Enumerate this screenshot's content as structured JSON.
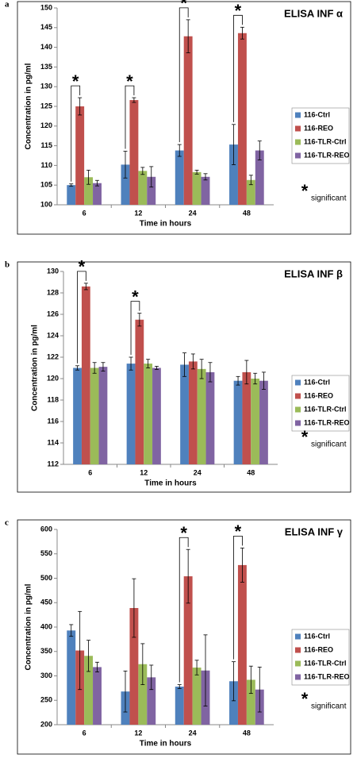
{
  "chart_data": [
    {
      "type": "bar",
      "panel_label": "a",
      "title": "ELISA INF α",
      "x_label": "Time in hours",
      "y_label": "Concentration in pg/ml",
      "categories": [
        "6",
        "12",
        "24",
        "48"
      ],
      "series": [
        {
          "name": "116-Ctrl",
          "color": "#4f81bd",
          "values": [
            105,
            110.2,
            113.8,
            115.3
          ],
          "errors": [
            0.3,
            3.4,
            1.5,
            5.1
          ]
        },
        {
          "name": "116-REO",
          "color": "#c0504d",
          "values": [
            125,
            126.6,
            142.8,
            143.6
          ],
          "errors": [
            2.2,
            0.6,
            4.2,
            1.5
          ]
        },
        {
          "name": "116-TLR-Ctrl",
          "color": "#9bbb59",
          "values": [
            107,
            108.6,
            108.3,
            106.3
          ],
          "errors": [
            1.8,
            0.9,
            0.5,
            1.2
          ]
        },
        {
          "name": "116-TLR-REO",
          "color": "#8064a2",
          "values": [
            105.5,
            107.1,
            107.1,
            113.8
          ],
          "errors": [
            0.7,
            2.6,
            0.8,
            2.4
          ]
        }
      ],
      "ylim": [
        100,
        150
      ],
      "yticks": [
        100,
        105,
        110,
        115,
        120,
        125,
        130,
        135,
        140,
        145,
        150
      ],
      "significance_marker": "*",
      "significance_label": "significant",
      "significant_categories": [
        0,
        1,
        2,
        3
      ]
    },
    {
      "type": "bar",
      "panel_label": "b",
      "title": "ELISA INF β",
      "x_label": "Time in hours",
      "y_label": "Concentration in pg/ml",
      "categories": [
        "6",
        "12",
        "24",
        "48"
      ],
      "series": [
        {
          "name": "116-Ctrl",
          "color": "#4f81bd",
          "values": [
            121.0,
            121.4,
            121.3,
            119.8
          ],
          "errors": [
            0.2,
            0.6,
            1.1,
            0.4
          ]
        },
        {
          "name": "116-REO",
          "color": "#c0504d",
          "values": [
            128.6,
            125.5,
            121.6,
            120.6
          ],
          "errors": [
            0.3,
            0.6,
            0.7,
            1.1
          ]
        },
        {
          "name": "116-TLR-Ctrl",
          "color": "#9bbb59",
          "values": [
            121.0,
            121.4,
            120.9,
            120.0
          ],
          "errors": [
            0.5,
            0.4,
            0.9,
            0.5
          ]
        },
        {
          "name": "116-TLR-REO",
          "color": "#8064a2",
          "values": [
            121.1,
            121.0,
            120.6,
            119.8
          ],
          "errors": [
            0.4,
            0.15,
            0.9,
            0.8
          ]
        }
      ],
      "ylim": [
        112,
        130
      ],
      "yticks": [
        112,
        114,
        116,
        118,
        120,
        122,
        124,
        126,
        128,
        130
      ],
      "significance_marker": "*",
      "significance_label": "significant",
      "significant_categories": [
        0,
        1
      ]
    },
    {
      "type": "bar",
      "panel_label": "c",
      "title": "ELISA INF γ",
      "x_label": "Time in hours",
      "y_label": "Concentration in pg/ml",
      "categories": [
        "6",
        "12",
        "24",
        "48"
      ],
      "series": [
        {
          "name": "116-Ctrl",
          "color": "#4f81bd",
          "values": [
            393,
            268,
            278,
            289
          ],
          "errors": [
            12,
            42,
            4,
            40
          ]
        },
        {
          "name": "116-REO",
          "color": "#c0504d",
          "values": [
            352,
            439,
            504,
            527
          ],
          "errors": [
            80,
            60,
            55,
            35
          ]
        },
        {
          "name": "116-TLR-Ctrl",
          "color": "#9bbb59",
          "values": [
            341,
            324,
            317,
            292
          ],
          "errors": [
            32,
            42,
            15,
            28
          ]
        },
        {
          "name": "116-TLR-REO",
          "color": "#8064a2",
          "values": [
            318,
            297,
            311,
            272
          ],
          "errors": [
            10,
            25,
            73,
            46
          ]
        }
      ],
      "ylim": [
        200,
        600
      ],
      "yticks": [
        200,
        250,
        300,
        350,
        400,
        450,
        500,
        550,
        600
      ],
      "significance_marker": "*",
      "significance_label": "significant",
      "significant_categories": [
        2,
        3
      ]
    }
  ]
}
